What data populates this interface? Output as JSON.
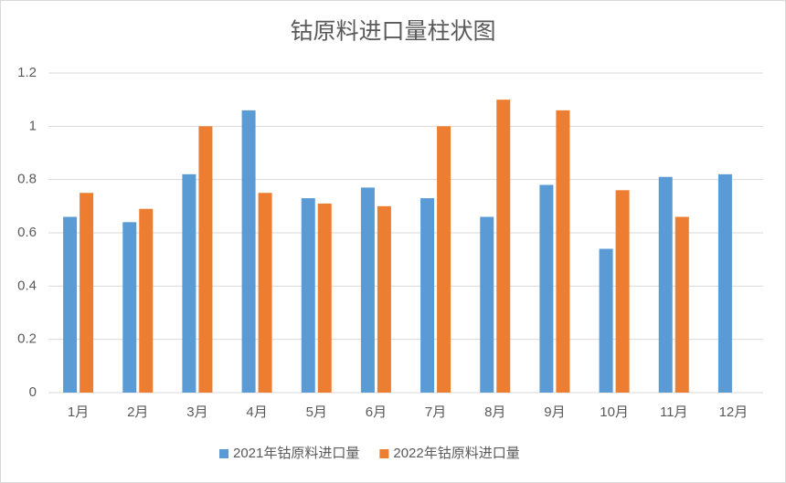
{
  "chart_data": {
    "type": "bar",
    "title": "钴原料进口量柱状图",
    "categories": [
      "1月",
      "2月",
      "3月",
      "4月",
      "5月",
      "6月",
      "7月",
      "8月",
      "9月",
      "10月",
      "11月",
      "12月"
    ],
    "series": [
      {
        "name": "2021年钴原料进口量",
        "color": "#5b9bd5",
        "values": [
          0.66,
          0.64,
          0.82,
          1.06,
          0.73,
          0.77,
          0.73,
          0.66,
          0.78,
          0.54,
          0.81,
          0.82
        ]
      },
      {
        "name": "2022年钴原料进口量",
        "color": "#ed7d31",
        "values": [
          0.75,
          0.69,
          1.0,
          0.75,
          0.71,
          0.7,
          1.0,
          1.1,
          1.06,
          0.76,
          0.66,
          null
        ]
      }
    ],
    "ylim": [
      0,
      1.2
    ],
    "yticks": [
      0,
      0.2,
      0.4,
      0.6,
      0.8,
      1,
      1.2
    ],
    "grid": true,
    "legend": "bottom"
  }
}
